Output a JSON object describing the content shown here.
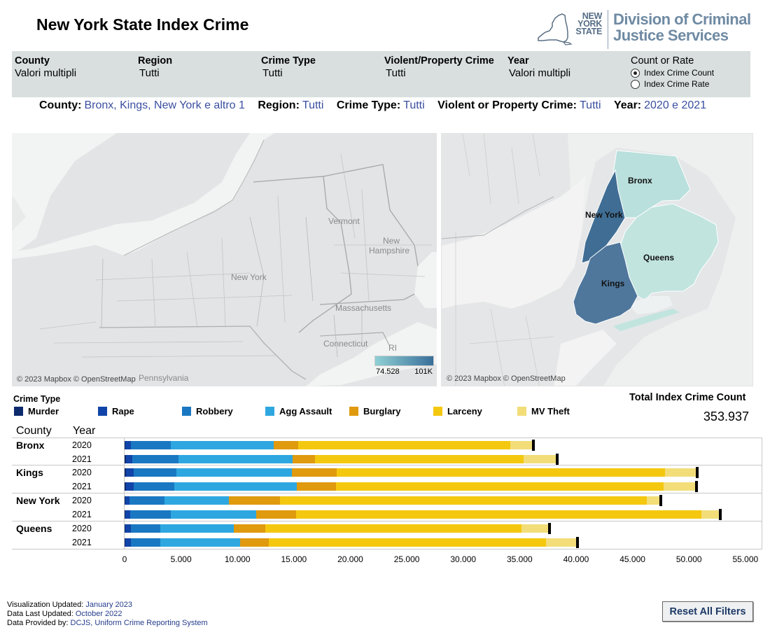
{
  "title": "New York State Index Crime",
  "logo": {
    "state_line1": "NEW",
    "state_line2": "YORK",
    "state_line3": "STATE",
    "agency_line1": "Division of Criminal",
    "agency_line2": "Justice Services"
  },
  "filters": {
    "county": {
      "label": "County",
      "value": "Valori multipli"
    },
    "region": {
      "label": "Region",
      "value": "Tutti"
    },
    "crime_type": {
      "label": "Crime Type",
      "value": "Tutti"
    },
    "violent_property": {
      "label": "Violent/Property Crime",
      "value": "Tutti"
    },
    "year": {
      "label": "Year",
      "value": "Valori multipli"
    },
    "count_or_rate": {
      "label": "Count or Rate",
      "option_count": "Index Crime Count",
      "option_rate": "Index Crime Rate",
      "selected": "Index Crime Count"
    }
  },
  "summary": {
    "county_label": "County:",
    "county_value": "Bronx, Kings, New York e altro 1",
    "region_label": "Region:",
    "region_value": "Tutti",
    "crime_type_label": "Crime Type:",
    "crime_type_value": "Tutti",
    "vp_label": "Violent or Property Crime:",
    "vp_value": "Tutti",
    "year_label": "Year:",
    "year_value": "2020 e 2021"
  },
  "map_left": {
    "credit": "© 2023 Mapbox © OpenStreetMap",
    "labels": {
      "ny": "New York",
      "vt": "Vermont",
      "nh1": "New",
      "nh2": "Hampshire",
      "ma": "Massachusetts",
      "ct": "Connecticut",
      "ri": "RI",
      "pa": "Pennsylvania"
    },
    "legend_min": "74.528",
    "legend_max": "101K"
  },
  "map_right": {
    "credit": "© 2023 Mapbox © OpenStreetMap",
    "boroughs": {
      "bronx": "Bronx",
      "newyork": "New York",
      "queens": "Queens",
      "kings": "Kings"
    },
    "colors": {
      "bronx": "#b9e0dc",
      "newyork": "#3f6d94",
      "queens": "#c1e4df",
      "kings": "#4f779c"
    }
  },
  "legend": {
    "title": "Crime Type",
    "items": [
      {
        "label": "Murder",
        "color": "#0d2a6e"
      },
      {
        "label": "Rape",
        "color": "#1144a8"
      },
      {
        "label": "Robbery",
        "color": "#1a78c2"
      },
      {
        "label": "Agg Assault",
        "color": "#2ea7e0"
      },
      {
        "label": "Burglary",
        "color": "#e09a0e"
      },
      {
        "label": "Larceny",
        "color": "#f4c80f"
      },
      {
        "label": "MV Theft",
        "color": "#f2dd79"
      }
    ]
  },
  "total": {
    "label": "Total Index Crime Count",
    "value": "353.937"
  },
  "table_headers": {
    "county": "County",
    "year": "Year"
  },
  "chart_data": {
    "type": "bar",
    "orientation": "horizontal",
    "stacked": true,
    "xlim": [
      0,
      56500
    ],
    "xticks": [
      "0",
      "5.000",
      "10.000",
      "15.000",
      "20.000",
      "25.000",
      "30.000",
      "35.000",
      "40.000",
      "45.000",
      "50.000",
      "55.000"
    ],
    "xtick_values": [
      0,
      5000,
      10000,
      15000,
      20000,
      25000,
      30000,
      35000,
      40000,
      45000,
      50000,
      55000
    ],
    "series_names": [
      "Murder",
      "Rape",
      "Robbery",
      "Agg Assault",
      "Burglary",
      "Larceny",
      "MV Theft"
    ],
    "rows": [
      {
        "county": "Bronx",
        "year": "2020",
        "values": [
          80,
          500,
          3500,
          9100,
          2200,
          18800,
          2000
        ]
      },
      {
        "county": "Bronx",
        "year": "2021",
        "values": [
          110,
          560,
          4100,
          10100,
          2000,
          18500,
          2900
        ]
      },
      {
        "county": "Kings",
        "year": "2020",
        "values": [
          100,
          700,
          3800,
          10200,
          4000,
          29100,
          2800
        ]
      },
      {
        "county": "Kings",
        "year": "2021",
        "values": [
          130,
          700,
          3600,
          10800,
          3500,
          29000,
          2900
        ]
      },
      {
        "county": "New York",
        "year": "2020",
        "values": [
          50,
          400,
          3100,
          5700,
          4500,
          32500,
          1200
        ]
      },
      {
        "county": "New York",
        "year": "2021",
        "values": [
          70,
          420,
          3600,
          7600,
          3500,
          35900,
          1600
        ]
      },
      {
        "county": "Queens",
        "year": "2020",
        "values": [
          60,
          500,
          2600,
          6500,
          2800,
          22700,
          2400
        ]
      },
      {
        "county": "Queens",
        "year": "2021",
        "values": [
          70,
          480,
          2600,
          7100,
          2500,
          24600,
          2700
        ]
      }
    ]
  },
  "footer": {
    "viz_label": "Visualization Updated:",
    "viz_value": "January 2023",
    "data_label": "Data Last Updated:",
    "data_value": "October 2022",
    "prov_label": "Data Provided by:",
    "prov_value": "DCJS, Uniform Crime Reporting System"
  },
  "reset_label": "Reset All Filters"
}
